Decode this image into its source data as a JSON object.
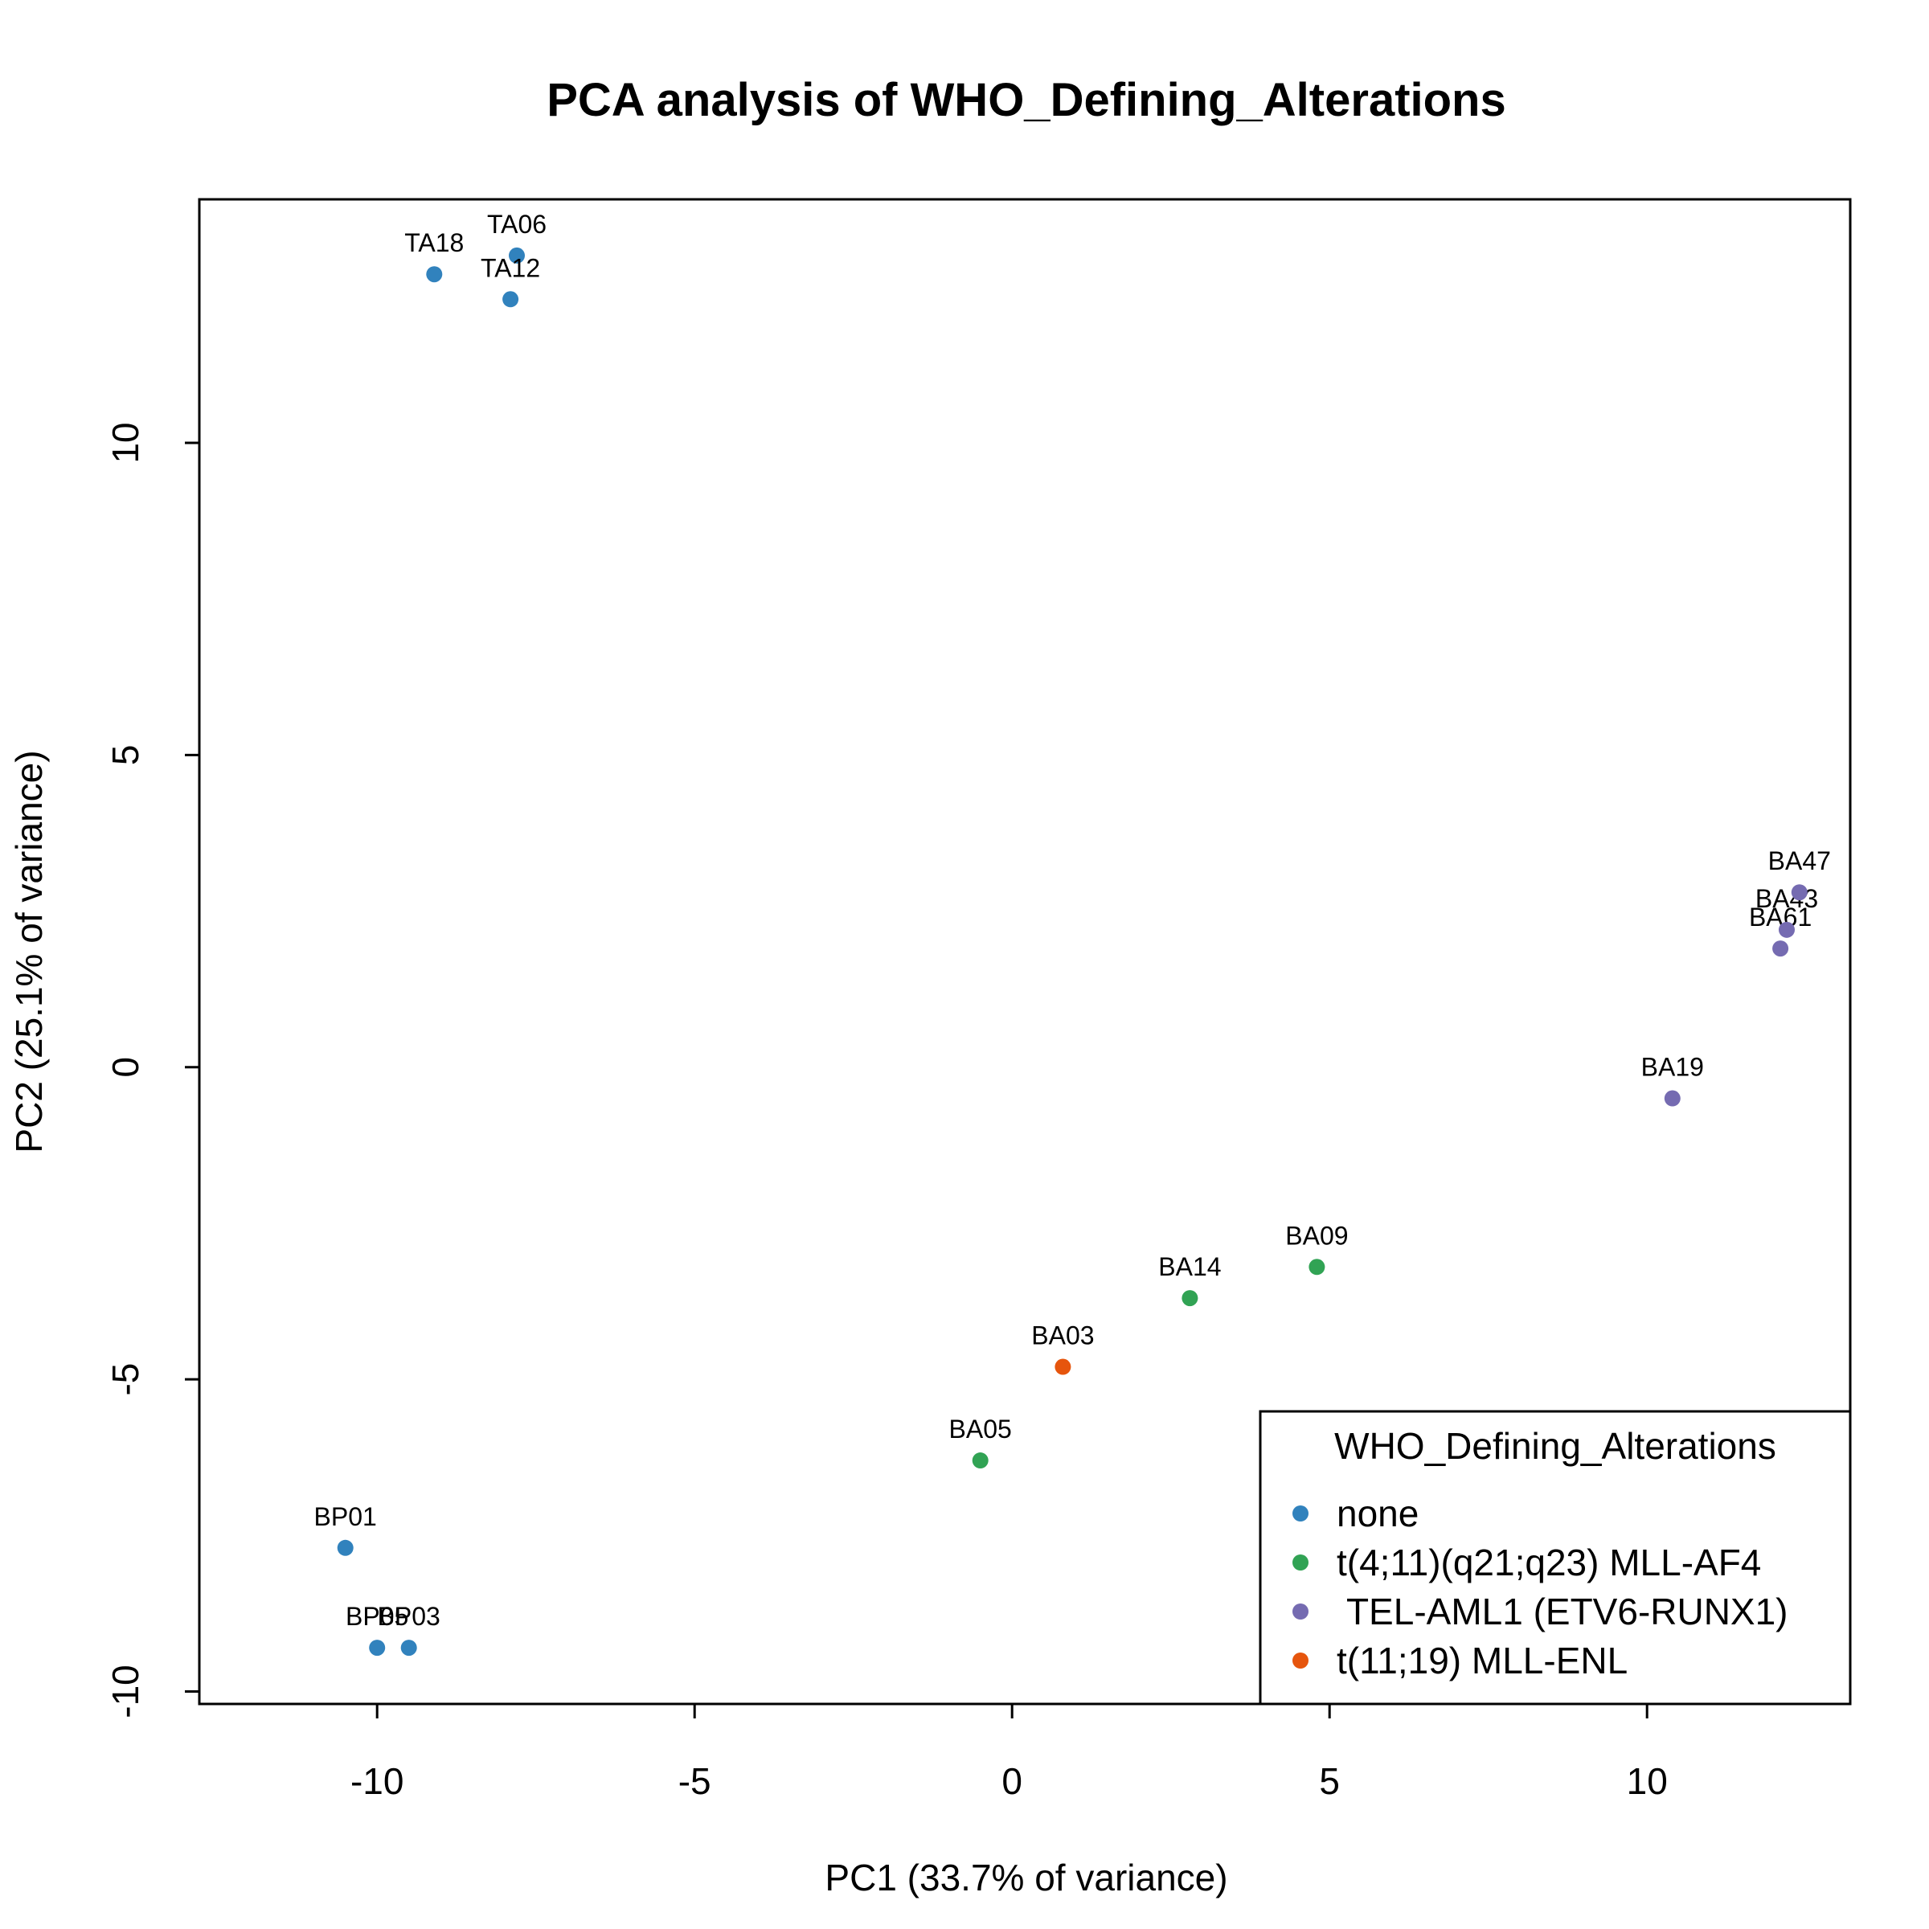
{
  "chart_data": {
    "type": "scatter",
    "title": "PCA analysis of WHO_Defining_Alterations",
    "xlabel": "PC1 (33.7% of variance)",
    "ylabel": "PC2 (25.1% of variance)",
    "xlim": [
      -12.8,
      13.2
    ],
    "ylim": [
      -10.2,
      13.9
    ],
    "xticks": [
      -10,
      -5,
      0,
      5,
      10
    ],
    "yticks": [
      -10,
      -5,
      0,
      5,
      10
    ],
    "xtick_labels": [
      "-10",
      "-5",
      "0",
      "5",
      "10"
    ],
    "ytick_labels": [
      "-10",
      "-5",
      "0",
      "5",
      "10"
    ],
    "grid": false,
    "legend": {
      "title": "WHO_Defining_Alterations",
      "placement": "bottom-right",
      "entries": [
        {
          "label": "none",
          "color": "#3182bd"
        },
        {
          "label": "t(4;11)(q21;q23) MLL-AF4",
          "color": "#31a354"
        },
        {
          "label": " TEL-AML1 (ETV6-RUNX1)",
          "color": "#756bb1"
        },
        {
          "label": "t(11;19) MLL-ENL",
          "color": "#e6550d"
        }
      ]
    },
    "series": [
      {
        "name": "none",
        "color": "#3182bd",
        "points": [
          {
            "label": "TA18",
            "x": -9.1,
            "y": 12.7
          },
          {
            "label": "TA06",
            "x": -7.8,
            "y": 13.0
          },
          {
            "label": "TA12",
            "x": -7.9,
            "y": 12.3
          },
          {
            "label": "BP01",
            "x": -10.5,
            "y": -7.7
          },
          {
            "label": "BP05",
            "x": -10.0,
            "y": -9.3
          },
          {
            "label": "BP03",
            "x": -9.5,
            "y": -9.3
          }
        ]
      },
      {
        "name": "t(4;11)(q21;q23) MLL-AF4",
        "color": "#31a354",
        "points": [
          {
            "label": "BA05",
            "x": -0.5,
            "y": -6.3
          },
          {
            "label": "BA14",
            "x": 2.8,
            "y": -3.7
          },
          {
            "label": "BA09",
            "x": 4.8,
            "y": -3.2
          }
        ]
      },
      {
        "name": " TEL-AML1 (ETV6-RUNX1)",
        "color": "#756bb1",
        "points": [
          {
            "label": "BA19",
            "x": 10.4,
            "y": -0.5
          },
          {
            "label": "BA61",
            "x": 12.1,
            "y": 1.9
          },
          {
            "label": "BA43",
            "x": 12.2,
            "y": 2.2
          },
          {
            "label": "BA47",
            "x": 12.4,
            "y": 2.8
          }
        ]
      },
      {
        "name": "t(11;19) MLL-ENL",
        "color": "#e6550d",
        "points": [
          {
            "label": "BA03",
            "x": 0.8,
            "y": -4.8
          }
        ]
      }
    ]
  }
}
